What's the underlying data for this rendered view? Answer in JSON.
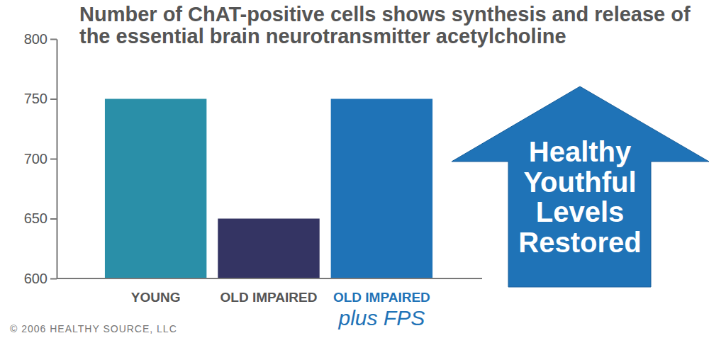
{
  "chart_data": {
    "type": "bar",
    "title": "Number of ChAT-positive cells shows synthesis and release of the essential brain neurotransmitter acetylcholine",
    "categories": [
      "YOUNG",
      "OLD IMPAIRED",
      "OLD IMPAIRED plus FPS"
    ],
    "values": [
      750,
      650,
      750
    ],
    "colors": [
      "#2a8fa8",
      "#343463",
      "#1f73b7"
    ],
    "ylim": [
      600,
      800
    ],
    "yticks": [
      600,
      650,
      700,
      750,
      800
    ],
    "grid": false,
    "annotations": [
      "Healthy Youthful Levels Restored",
      "© 2006 HEALTHY SOURCE, LLC"
    ]
  }
}
